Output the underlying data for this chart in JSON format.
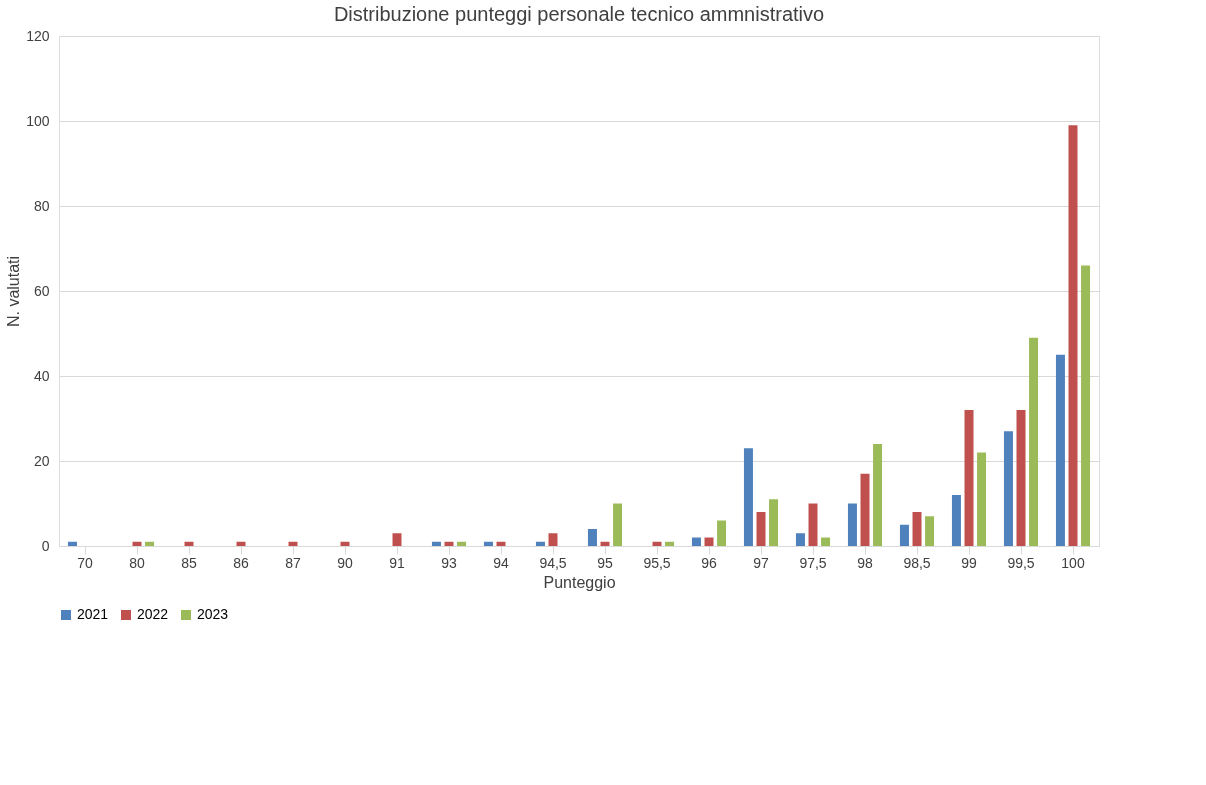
{
  "chart_data": {
    "type": "bar",
    "title": "Distribuzione punteggi personale tecnico ammnistrativo",
    "xlabel": "Punteggio",
    "ylabel": "N. valutati",
    "categories": [
      "70",
      "80",
      "85",
      "86",
      "87",
      "90",
      "91",
      "93",
      "94",
      "94,5",
      "95",
      "95,5",
      "96",
      "97",
      "97,5",
      "98",
      "98,5",
      "99",
      "99,5",
      "100"
    ],
    "series": [
      {
        "name": "2021",
        "color": "#4f81bd",
        "values": [
          1,
          0,
          0,
          0,
          0,
          0,
          0,
          1,
          1,
          1,
          4,
          0,
          2,
          23,
          3,
          10,
          5,
          12,
          27,
          45
        ]
      },
      {
        "name": "2022",
        "color": "#c0504d",
        "values": [
          0,
          1,
          1,
          1,
          1,
          1,
          3,
          1,
          1,
          3,
          1,
          1,
          2,
          8,
          10,
          17,
          8,
          32,
          32,
          99
        ]
      },
      {
        "name": "2023",
        "color": "#9bbb59",
        "values": [
          0,
          1,
          0,
          0,
          0,
          0,
          0,
          1,
          0,
          0,
          10,
          1,
          6,
          11,
          2,
          24,
          7,
          22,
          49,
          66
        ]
      }
    ],
    "ylim": [
      0,
      120
    ],
    "yticks": [
      0,
      20,
      40,
      60,
      80,
      100,
      120
    ],
    "grid": "y",
    "legend": "bottom"
  }
}
